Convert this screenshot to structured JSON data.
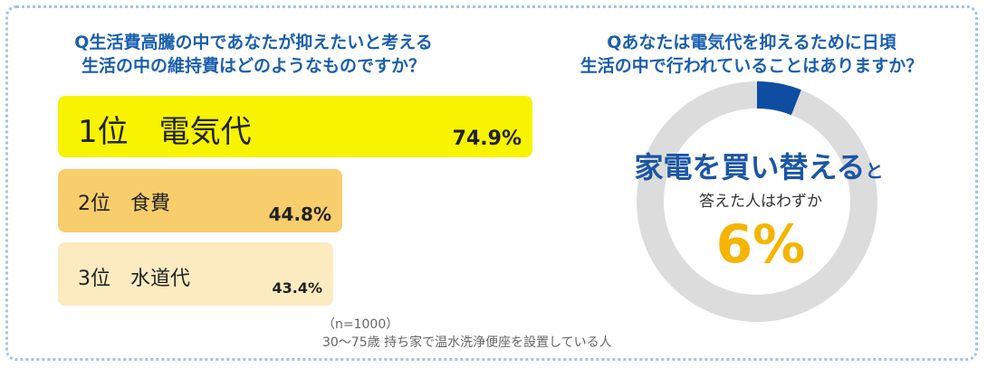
{
  "left_title": {
    "line1": "Q生活費高騰の中であなたが抑えたいと考える",
    "line2": "生活の中の維持費はどのようなものですか？"
  },
  "right_title": {
    "line1": "Qあなたは電気代を抑えるために日頃",
    "line2": "生活の中で行われていることはありますか？"
  },
  "chart_data": [
    {
      "type": "bar",
      "orientation": "horizontal",
      "categories": [
        "1位　電気代",
        "2位　食費",
        "3位　水道代"
      ],
      "values": [
        74.9,
        44.8,
        43.4
      ],
      "value_labels": [
        "74.9%",
        "44.8%",
        "43.4%"
      ],
      "colors": [
        "#f8f400",
        "#f8cd6c",
        "#fcebc1"
      ],
      "xlim": [
        0,
        100
      ]
    },
    {
      "type": "pie",
      "variant": "donut",
      "values": [
        6,
        94
      ],
      "colors": [
        "#0e4da1",
        "#dcdcdc"
      ],
      "emphasis": "家電を買い替える",
      "emphasis_suffix": "と",
      "caption": "答えた人はわずか",
      "value_label": "6%"
    }
  ],
  "notes": {
    "sample": "（n=1000）",
    "condition": "30～75歳  持ち家で温水洗浄便座を設置している人"
  }
}
